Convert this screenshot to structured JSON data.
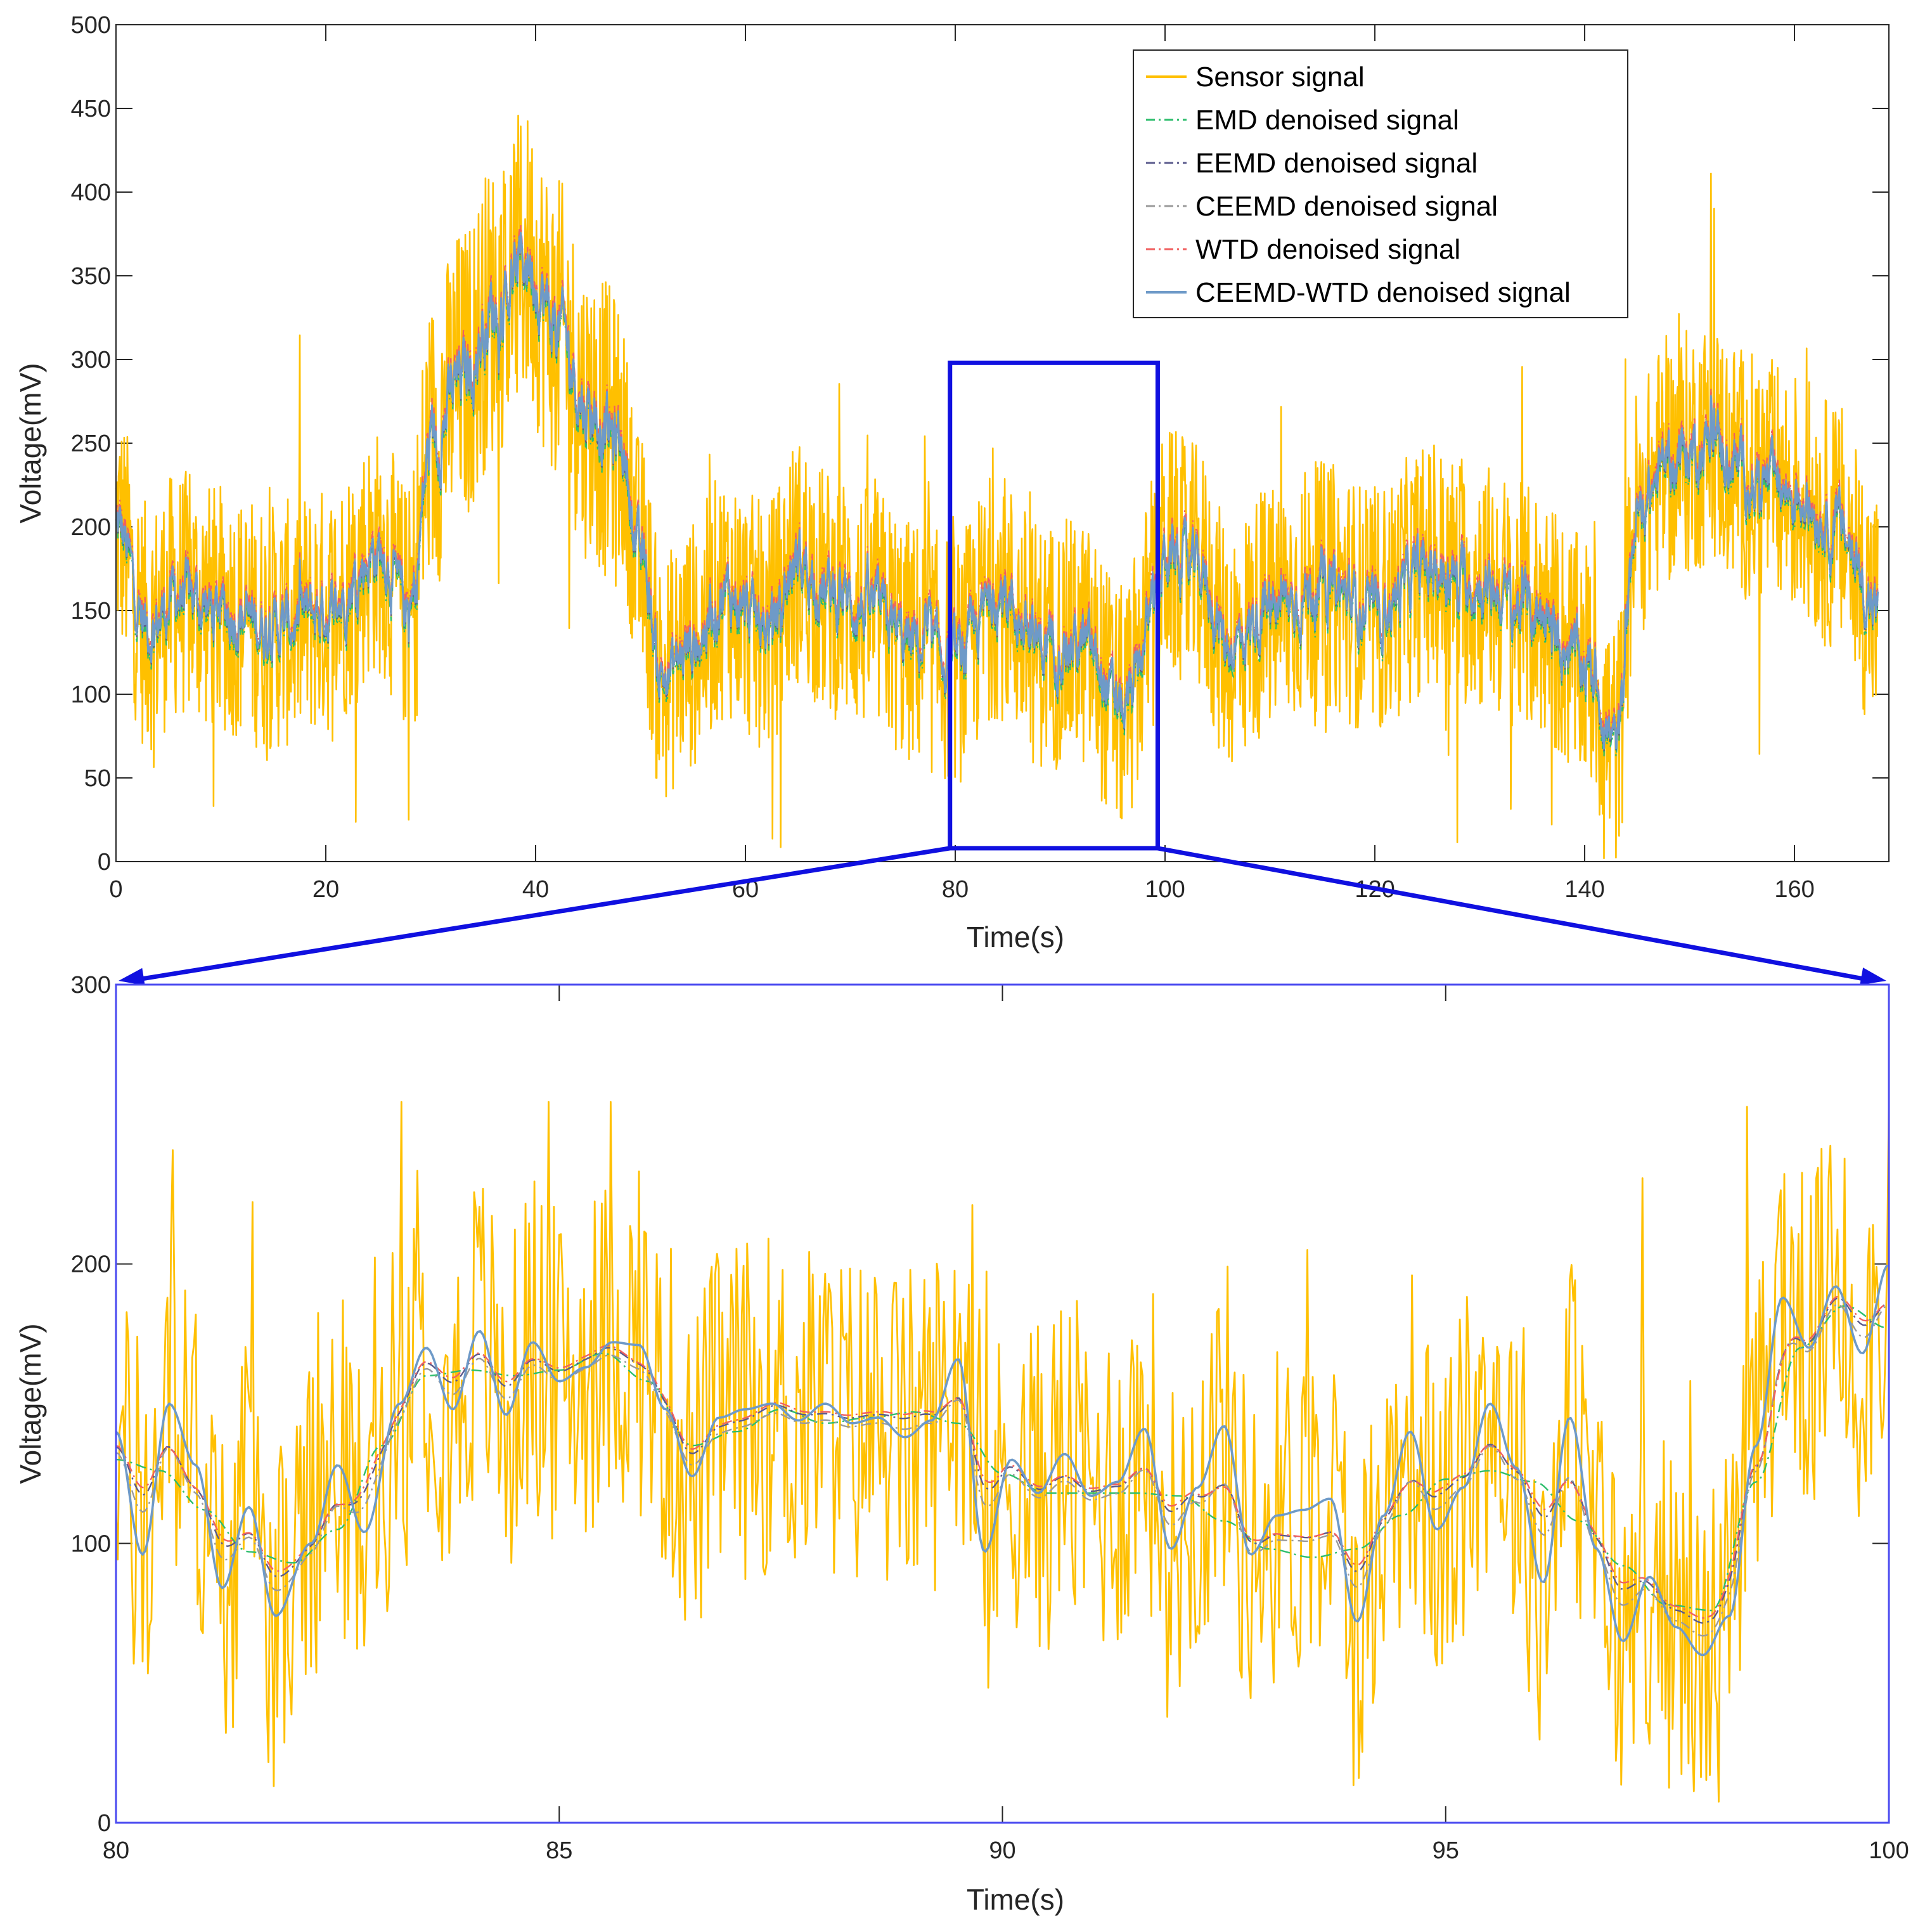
{
  "colors": {
    "sensor": "#FFC000",
    "emd": "#2DBE6C",
    "eemd": "#5A5A8C",
    "ceemd": "#9A9A9A",
    "wtd": "#F06060",
    "ceemd_wtd": "#6E9AC8",
    "zoom_box": "#1010E0",
    "zoom_frame": "#4A4AF0",
    "axis": "#262626"
  },
  "chart_data": [
    {
      "type": "line",
      "xlabel": "Time(s)",
      "ylabel": "Voltage(mV)",
      "xlim": [
        0,
        169
      ],
      "ylim": [
        0,
        500
      ],
      "xticks": [
        0,
        20,
        40,
        60,
        80,
        100,
        120,
        140,
        160
      ],
      "xtick_labels": [
        "0",
        "20",
        "40",
        "60",
        "80",
        "100",
        "120",
        "140",
        "160"
      ],
      "yticks": [
        0,
        50,
        100,
        150,
        200,
        250,
        300,
        350,
        400,
        450,
        500
      ],
      "ytick_labels": [
        "0",
        "50",
        "100",
        "150",
        "200",
        "250",
        "300",
        "350",
        "400",
        "450",
        "500"
      ],
      "legend": {
        "placement": "top-right",
        "entries": [
          "Sensor signal",
          "EMD denoised signal",
          "EEMD denoised signal",
          "CEEMD denoised signal",
          "WTD denoised signal",
          "CEEMD-WTD denoised signal"
        ]
      },
      "zoom_region": {
        "x": [
          79.5,
          99.3
        ],
        "y": [
          8,
          298
        ]
      },
      "trend_knots": {
        "x": [
          0,
          3,
          6,
          10,
          15,
          20,
          25,
          28,
          30,
          33,
          36,
          39,
          42,
          45,
          48,
          50,
          52,
          55,
          58,
          62,
          65,
          68,
          72,
          76,
          80,
          84,
          88,
          92,
          96,
          99,
          100,
          103,
          106,
          110,
          115,
          120,
          125,
          130,
          135,
          140,
          143,
          145,
          148,
          152,
          156,
          160,
          164,
          168
        ],
        "y": [
          200,
          140,
          160,
          150,
          140,
          150,
          185,
          150,
          250,
          290,
          330,
          360,
          320,
          270,
          250,
          180,
          110,
          130,
          160,
          140,
          180,
          160,
          150,
          130,
          120,
          160,
          130,
          130,
          90,
          150,
          185,
          175,
          130,
          150,
          165,
          150,
          175,
          165,
          150,
          120,
          70,
          210,
          240,
          250,
          230,
          220,
          200,
          150
        ]
      }
    },
    {
      "type": "line",
      "xlabel": "Time(s)",
      "ylabel": "Voltage(mV)",
      "xlim": [
        80,
        100
      ],
      "ylim": [
        0,
        300
      ],
      "xticks": [
        80,
        85,
        90,
        95,
        100
      ],
      "xtick_labels": [
        "80",
        "85",
        "90",
        "95",
        "100"
      ],
      "yticks": [
        0,
        100,
        200,
        300
      ],
      "ytick_labels": [
        "0",
        "100",
        "200",
        "300"
      ],
      "emd_knots": {
        "x": [
          80,
          80.5,
          81,
          81.5,
          82,
          82.5,
          83,
          83.5,
          84,
          84.5,
          85,
          85.5,
          86,
          86.5,
          87,
          87.5,
          88,
          88.5,
          89,
          89.5,
          90,
          90.5,
          91,
          91.5,
          92,
          92.5,
          93,
          93.5,
          94,
          94.5,
          95,
          95.5,
          96,
          96.5,
          97,
          97.5,
          98,
          98.5,
          99,
          99.5,
          100
        ],
        "y": [
          130,
          126,
          112,
          97,
          93,
          105,
          135,
          160,
          162,
          160,
          162,
          168,
          158,
          135,
          140,
          148,
          143,
          145,
          147,
          143,
          125,
          118,
          118,
          118,
          117,
          108,
          98,
          95,
          98,
          110,
          123,
          126,
          122,
          108,
          92,
          78,
          76,
          122,
          170,
          185,
          177
        ]
      },
      "ceemd_wtd_knots": {
        "x": [
          80,
          80.3,
          80.6,
          80.9,
          81.2,
          81.5,
          81.8,
          82.2,
          82.5,
          82.8,
          83.2,
          83.5,
          83.8,
          84.1,
          84.4,
          84.7,
          85,
          85.3,
          85.6,
          85.9,
          86.2,
          86.5,
          86.8,
          87.1,
          87.4,
          87.7,
          88,
          88.3,
          88.6,
          88.9,
          89.2,
          89.5,
          89.8,
          90.1,
          90.4,
          90.7,
          91,
          91.3,
          91.6,
          91.9,
          92.2,
          92.5,
          92.8,
          93.1,
          93.4,
          93.7,
          94,
          94.3,
          94.6,
          94.9,
          95.2,
          95.5,
          95.8,
          96.1,
          96.4,
          96.7,
          97,
          97.3,
          97.6,
          97.9,
          98.2,
          98.5,
          98.8,
          99.1,
          99.4,
          99.7,
          100
        ],
        "y": [
          140,
          96,
          150,
          128,
          84,
          113,
          74,
          100,
          128,
          104,
          150,
          170,
          148,
          176,
          146,
          172,
          158,
          163,
          172,
          171,
          148,
          124,
          145,
          148,
          150,
          144,
          150,
          143,
          145,
          138,
          144,
          166,
          97,
          130,
          118,
          132,
          117,
          122,
          141,
          98,
          120,
          142,
          96,
          110,
          112,
          116,
          72,
          110,
          140,
          105,
          120,
          150,
          127,
          86,
          145,
          98,
          65,
          88,
          70,
          60,
          74,
          135,
          188,
          170,
          192,
          168,
          200
        ]
      }
    }
  ]
}
